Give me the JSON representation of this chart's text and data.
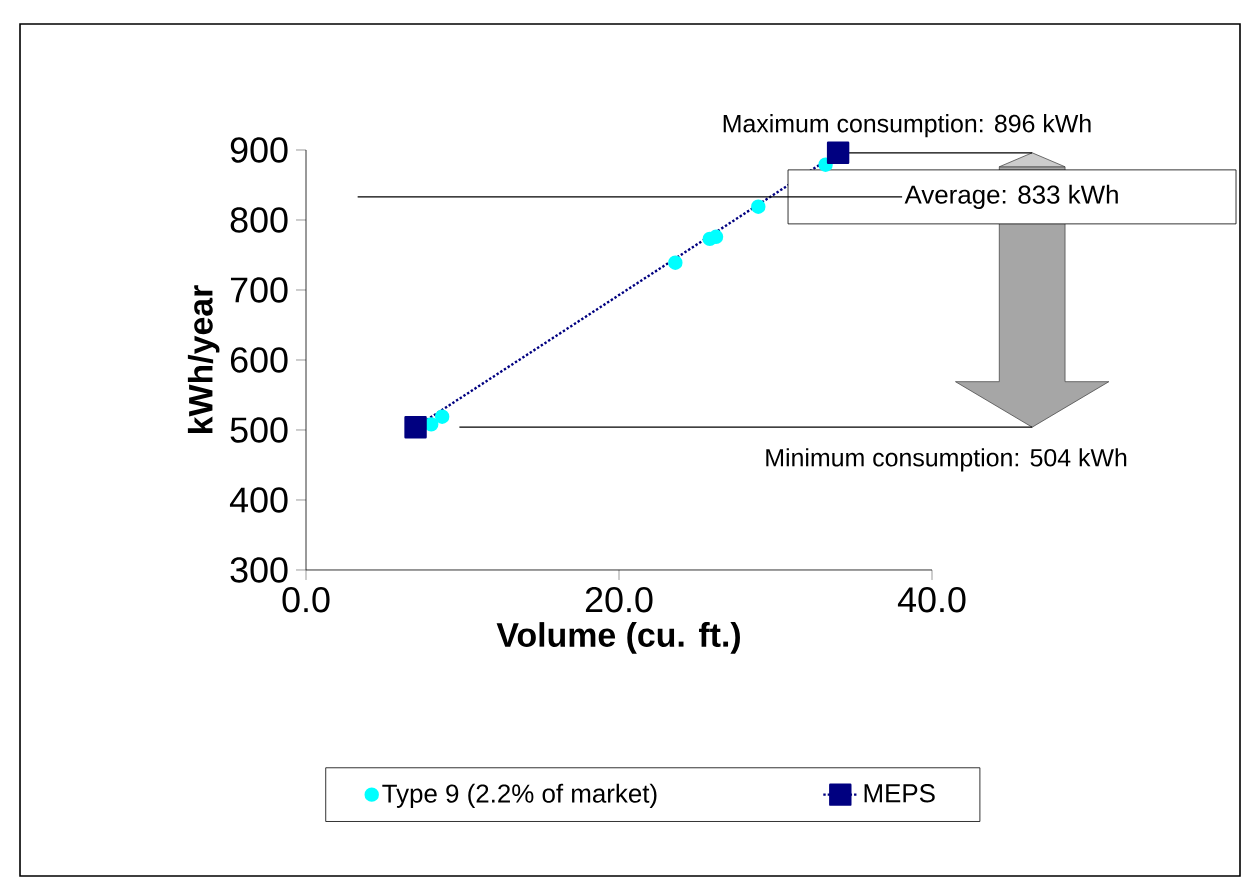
{
  "chart_data": {
    "type": "scatter",
    "xlabel": "Volume (cu. ft.)",
    "ylabel": "kWh/year",
    "xlim": [
      0,
      40
    ],
    "xticks": [
      {
        "value": 0,
        "label": "0.0"
      },
      {
        "value": 20,
        "label": "20.0"
      },
      {
        "value": 40,
        "label": "40.0"
      }
    ],
    "ylim": [
      300,
      900
    ],
    "yticks": [
      300,
      400,
      500,
      600,
      700,
      800,
      900
    ],
    "series": [
      {
        "name": "Type 9 (2.2% of market)",
        "type": "scatter",
        "color": "#00ffff",
        "marker": "circle",
        "x": [
          8.0,
          8.7,
          23.6,
          25.8,
          26.2,
          28.9,
          33.2
        ],
        "values": [
          508,
          519,
          739,
          773,
          776,
          819,
          879
        ]
      },
      {
        "name": "MEPS",
        "type": "line",
        "color": "#000080",
        "marker": "square",
        "line_style": "dotted",
        "x": [
          7.0,
          34.0
        ],
        "values": [
          504,
          896
        ]
      }
    ],
    "ref_lines": [
      {
        "axis": "y",
        "value": 896,
        "label": "Maximum consumption: 896 kWh"
      },
      {
        "axis": "y",
        "value": 833,
        "label": "Average: 833 kWh"
      },
      {
        "axis": "y",
        "value": 504,
        "label": "Minimum consumption: 504 kWh"
      }
    ],
    "legend": "bottom",
    "grid": false
  }
}
